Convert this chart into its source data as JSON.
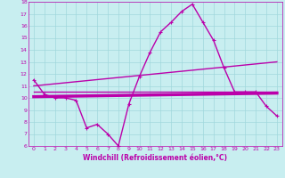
{
  "xlabel": "Windchill (Refroidissement éolien,°C)",
  "bg_color": "#c8eef0",
  "grid_color": "#a0d8dc",
  "line_color": "#bb00aa",
  "xlim": [
    -0.5,
    23.5
  ],
  "ylim": [
    6,
    18
  ],
  "yticks": [
    6,
    7,
    8,
    9,
    10,
    11,
    12,
    13,
    14,
    15,
    16,
    17,
    18
  ],
  "xticks": [
    0,
    1,
    2,
    3,
    4,
    5,
    6,
    7,
    8,
    9,
    10,
    11,
    12,
    13,
    14,
    15,
    16,
    17,
    18,
    19,
    20,
    21,
    22,
    23
  ],
  "main_x": [
    0,
    1,
    2,
    3,
    4,
    5,
    6,
    7,
    8,
    9,
    10,
    11,
    12,
    13,
    14,
    15,
    16,
    17,
    18,
    19,
    20,
    21,
    22,
    23
  ],
  "main_y": [
    11.5,
    10.3,
    10.0,
    10.0,
    9.8,
    7.5,
    7.8,
    7.0,
    6.0,
    9.5,
    11.8,
    13.8,
    15.5,
    16.3,
    17.2,
    17.8,
    16.3,
    14.8,
    12.5,
    10.5,
    10.5,
    10.5,
    9.3,
    8.5
  ],
  "trend1_x": [
    0,
    23
  ],
  "trend1_y": [
    10.5,
    10.5
  ],
  "trend2_x": [
    0,
    23
  ],
  "trend2_y": [
    11.0,
    13.0
  ],
  "trend3_x": [
    0,
    23
  ],
  "trend3_y": [
    10.1,
    10.4
  ],
  "lw_main": 1.0,
  "lw_trend_thin": 1.0,
  "lw_trend_thick": 2.5
}
